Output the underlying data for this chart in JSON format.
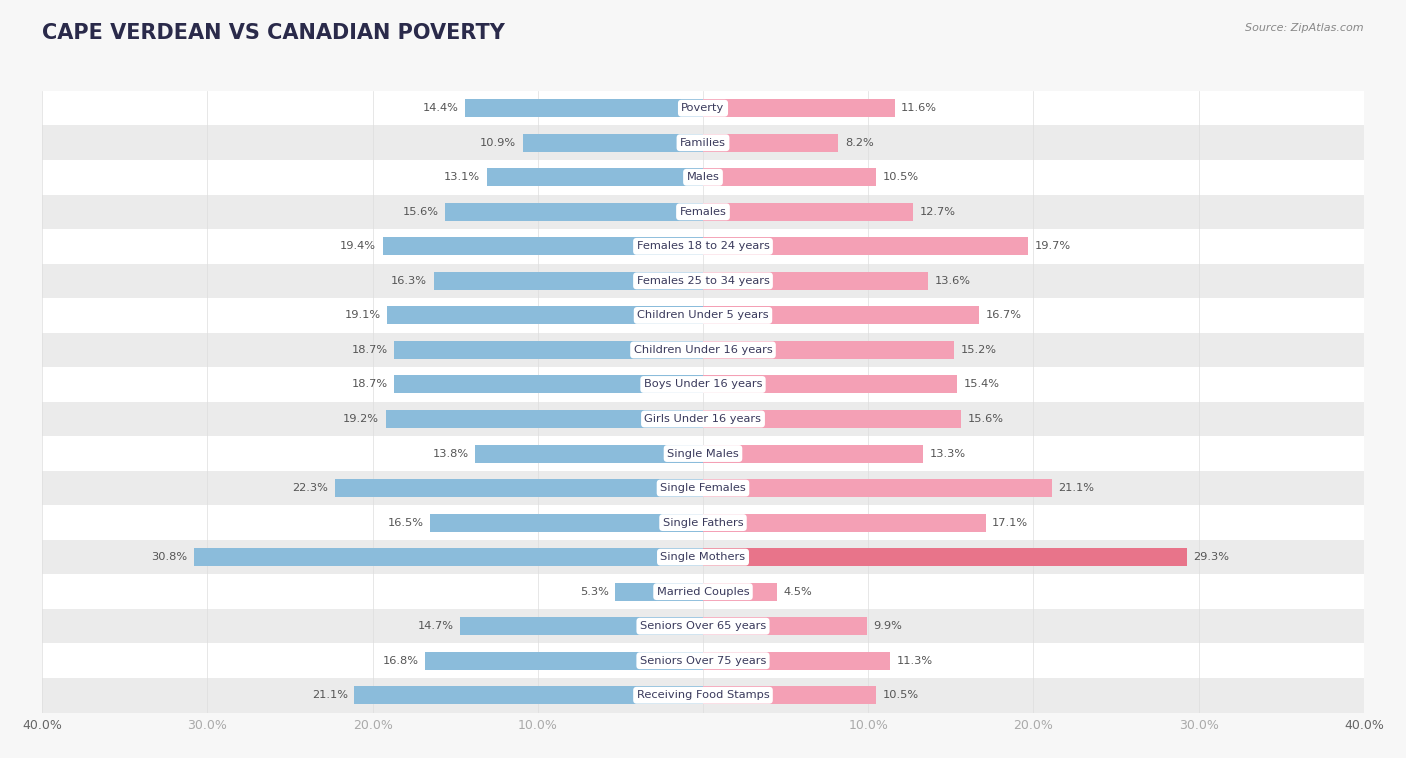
{
  "title": "CAPE VERDEAN VS CANADIAN POVERTY",
  "source": "Source: ZipAtlas.com",
  "categories": [
    "Poverty",
    "Families",
    "Males",
    "Females",
    "Females 18 to 24 years",
    "Females 25 to 34 years",
    "Children Under 5 years",
    "Children Under 16 years",
    "Boys Under 16 years",
    "Girls Under 16 years",
    "Single Males",
    "Single Females",
    "Single Fathers",
    "Single Mothers",
    "Married Couples",
    "Seniors Over 65 years",
    "Seniors Over 75 years",
    "Receiving Food Stamps"
  ],
  "cape_verdean": [
    14.4,
    10.9,
    13.1,
    15.6,
    19.4,
    16.3,
    19.1,
    18.7,
    18.7,
    19.2,
    13.8,
    22.3,
    16.5,
    30.8,
    5.3,
    14.7,
    16.8,
    21.1
  ],
  "canadian": [
    11.6,
    8.2,
    10.5,
    12.7,
    19.7,
    13.6,
    16.7,
    15.2,
    15.4,
    15.6,
    13.3,
    21.1,
    17.1,
    29.3,
    4.5,
    9.9,
    11.3,
    10.5
  ],
  "cv_color": "#8BBCDB",
  "ca_color": "#F4A0B5",
  "ca_color_single_mothers": "#E8748A",
  "bg_color": "#f7f7f7",
  "row_color_light": "#ffffff",
  "row_color_dark": "#ebebeb",
  "axis_max": 40.0,
  "bar_height": 0.52,
  "label_fontsize": 8.2,
  "value_fontsize": 8.2,
  "title_fontsize": 15,
  "legend_fontsize": 10
}
